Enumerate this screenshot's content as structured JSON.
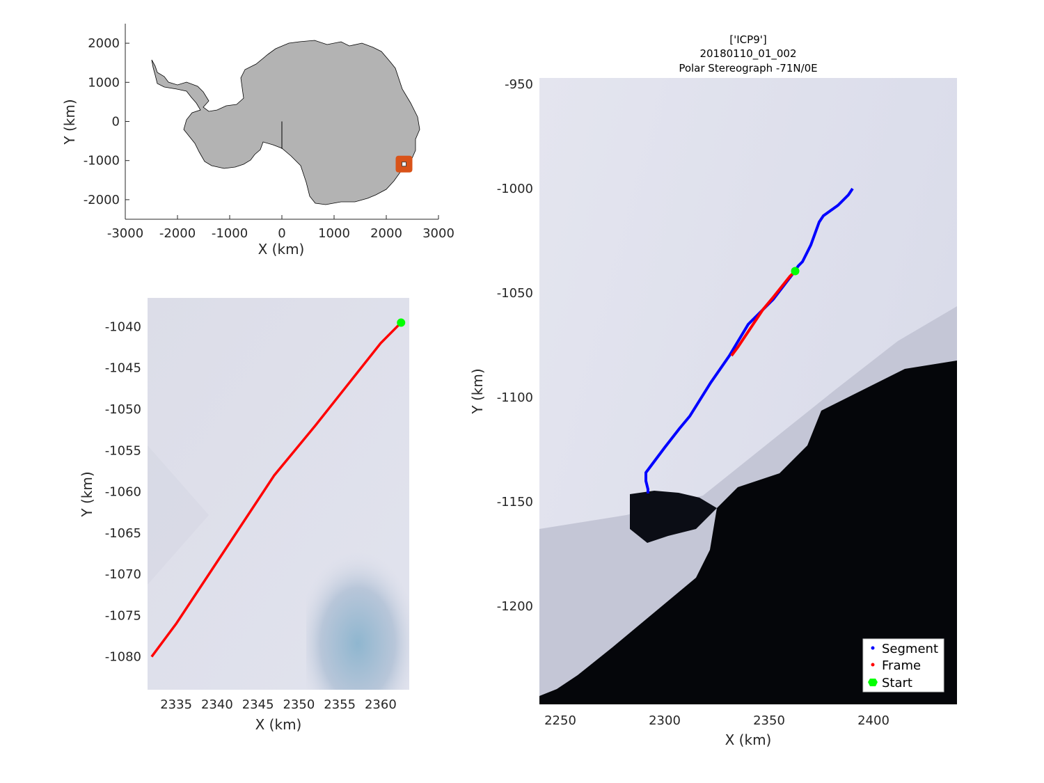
{
  "figure": {
    "title_lines": [
      "['ICP9']",
      "20180110_01_002",
      "Polar Stereograph -71N/0E"
    ]
  },
  "overview": {
    "xlabel": "X (km)",
    "ylabel": "Y (km)",
    "xlim": [
      -3000,
      3000
    ],
    "ylim": [
      -2500,
      2500
    ],
    "xticks": [
      "-3000",
      "-2000",
      "-1000",
      "0",
      "1000",
      "2000",
      "3000"
    ],
    "yticks": [
      "2000",
      "1000",
      "0",
      "-1000",
      "-2000"
    ],
    "land_color": "#b3b3b3",
    "marker_color": "#d95319",
    "marker_center_km": [
      2340,
      -1090
    ]
  },
  "frame_zoom": {
    "xlabel": "X (km)",
    "ylabel": "Y (km)",
    "xlim": [
      2331.5,
      2363.5
    ],
    "ylim": [
      -1084,
      -1036.5
    ],
    "xticks": [
      "2335",
      "2340",
      "2345",
      "2350",
      "2355",
      "2360"
    ],
    "yticks": [
      "-1040",
      "-1045",
      "-1050",
      "-1055",
      "-1060",
      "-1065",
      "-1070",
      "-1075",
      "-1080"
    ]
  },
  "segment_map": {
    "xlabel": "X (km)",
    "ylabel": "Y (km)",
    "xlim": [
      2240,
      2440
    ],
    "ylim": [
      -1247,
      -947
    ],
    "xticks": [
      "2250",
      "2300",
      "2350",
      "2400"
    ],
    "yticks": [
      "-950",
      "-1000",
      "-1050",
      "-1100",
      "-1150",
      "-1200"
    ]
  },
  "legend": {
    "segment_label": "Segment",
    "frame_label": "Frame",
    "start_label": "Start",
    "segment_color": "#0000ff",
    "frame_color": "#ff0000",
    "start_color": "#00ff00"
  },
  "chart_data": {
    "type": "line",
    "series": [
      {
        "name": "Segment",
        "x": [
          2390,
          2388,
          2383,
          2376,
          2374,
          2370,
          2368,
          2366,
          2364,
          2362,
          2352,
          2340,
          2331,
          2322,
          2312,
          2307,
          2300,
          2294,
          2291,
          2291,
          2292,
          2292
        ],
        "y": [
          -1000,
          -1003,
          -1008,
          -1013,
          -1016,
          -1027,
          -1031,
          -1035,
          -1037,
          -1040,
          -1053,
          -1065,
          -1080,
          -1093,
          -1109,
          -1115,
          -1124,
          -1132,
          -1136,
          -1140,
          -1144,
          -1146
        ]
      },
      {
        "name": "Frame",
        "x": [
          2362.5,
          2360,
          2356,
          2352,
          2347,
          2341,
          2335,
          2332
        ],
        "y": [
          -1039.5,
          -1042,
          -1047,
          -1052,
          -1058,
          -1067,
          -1076,
          -1080
        ]
      }
    ],
    "start_point": {
      "x": 2362.5,
      "y": -1039.5
    }
  }
}
